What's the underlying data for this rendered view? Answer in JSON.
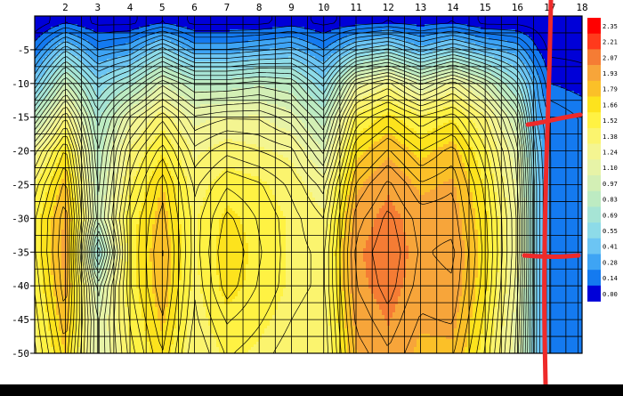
{
  "chart_data": {
    "type": "heatmap",
    "title": "",
    "xlabel": "",
    "ylabel": "",
    "x_ticks": [
      2,
      3,
      4,
      5,
      6,
      7,
      8,
      9,
      10,
      11,
      12,
      13,
      14,
      15,
      16,
      17,
      18
    ],
    "y_ticks": [
      -5,
      -10,
      -15,
      -20,
      -25,
      -30,
      -35,
      -40,
      -45,
      -50
    ],
    "xlim": [
      1.05,
      18.0
    ],
    "ylim": [
      -50,
      0
    ],
    "grid": true,
    "legend": {
      "placement": "right",
      "levels": [
        "2.35",
        "2.21",
        "2.07",
        "1.93",
        "1.79",
        "1.66",
        "1.52",
        "1.38",
        "1.24",
        "1.10",
        "0.97",
        "0.83",
        "0.69",
        "0.55",
        "0.41",
        "0.28",
        "0.14",
        "0.00"
      ],
      "colors": [
        "#ff0000",
        "#ff3a1c",
        "#f57c34",
        "#f7a53a",
        "#fbc028",
        "#fde31d",
        "#fff243",
        "#fbf46e",
        "#f4f591",
        "#e7f3a7",
        "#d3efb5",
        "#bdebc2",
        "#a6e4d5",
        "#8ddbe8",
        "#6cc5f3",
        "#3ea4f4",
        "#147af0",
        "#0000d8"
      ]
    },
    "z_rows_y": [
      -1,
      -5,
      -10,
      -15,
      -20,
      -25,
      -30,
      -35,
      -40,
      -45,
      -50
    ],
    "z_x": [
      1.05,
      2,
      3,
      4,
      5,
      6,
      7,
      8,
      9,
      10,
      11,
      12,
      13,
      14,
      15,
      16,
      16.6,
      17,
      18
    ],
    "z": [
      [
        0.0,
        0.14,
        0.05,
        0.05,
        0.14,
        0.05,
        0.05,
        0.05,
        0.1,
        0.05,
        0.1,
        0.14,
        0.1,
        0.14,
        0.05,
        0.05,
        0.03,
        0.0,
        0.0
      ],
      [
        0.2,
        0.55,
        0.28,
        0.35,
        0.6,
        0.35,
        0.35,
        0.4,
        0.45,
        0.28,
        0.55,
        0.65,
        0.45,
        0.6,
        0.45,
        0.35,
        0.15,
        0.05,
        0.05
      ],
      [
        0.5,
        1.0,
        0.6,
        0.8,
        1.1,
        0.9,
        0.9,
        0.95,
        0.9,
        0.6,
        1.2,
        1.35,
        1.1,
        1.3,
        1.05,
        0.7,
        0.35,
        0.14,
        0.1
      ],
      [
        0.9,
        1.4,
        0.8,
        1.2,
        1.45,
        1.2,
        1.25,
        1.25,
        1.15,
        0.9,
        1.55,
        1.7,
        1.55,
        1.65,
        1.4,
        1.0,
        0.4,
        0.28,
        0.2
      ],
      [
        1.3,
        1.7,
        0.9,
        1.4,
        1.65,
        1.35,
        1.45,
        1.4,
        1.35,
        1.1,
        1.75,
        1.9,
        1.75,
        1.85,
        1.55,
        1.15,
        0.5,
        0.28,
        0.2
      ],
      [
        1.5,
        1.85,
        0.95,
        1.5,
        1.8,
        1.45,
        1.6,
        1.55,
        1.45,
        1.3,
        1.9,
        2.05,
        1.9,
        1.95,
        1.65,
        1.2,
        0.55,
        0.28,
        0.2
      ],
      [
        1.6,
        1.95,
        1.0,
        1.6,
        1.85,
        1.5,
        1.7,
        1.6,
        1.5,
        1.4,
        2.0,
        2.12,
        2.0,
        2.0,
        1.7,
        1.25,
        0.55,
        0.28,
        0.2
      ],
      [
        1.6,
        1.98,
        0.7,
        1.6,
        1.9,
        1.5,
        1.75,
        1.62,
        1.5,
        1.45,
        2.05,
        2.15,
        2.02,
        2.05,
        1.72,
        1.25,
        0.55,
        0.28,
        0.2
      ],
      [
        1.55,
        1.95,
        1.0,
        1.6,
        1.88,
        1.48,
        1.72,
        1.6,
        1.5,
        1.45,
        2.03,
        2.13,
        2.0,
        2.02,
        1.7,
        1.22,
        0.55,
        0.28,
        0.2
      ],
      [
        1.5,
        1.88,
        1.1,
        1.55,
        1.82,
        1.45,
        1.62,
        1.55,
        1.47,
        1.42,
        1.98,
        2.08,
        1.95,
        1.97,
        1.65,
        1.18,
        0.55,
        0.28,
        0.2
      ],
      [
        1.45,
        1.8,
        1.1,
        1.5,
        1.75,
        1.4,
        1.55,
        1.5,
        1.43,
        1.4,
        1.92,
        2.02,
        1.9,
        1.9,
        1.6,
        1.15,
        0.55,
        0.28,
        0.2
      ]
    ]
  }
}
